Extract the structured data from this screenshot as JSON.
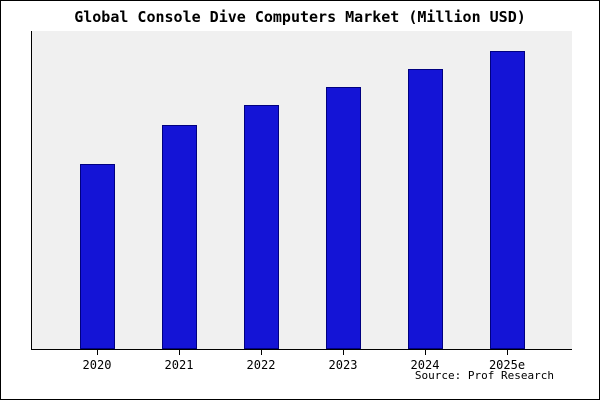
{
  "title": "Global Console Dive Computers Market (Million USD)",
  "source": "Source: Prof Research",
  "colors": {
    "bar_fill": "#1414d6",
    "bar_border": "#000080",
    "plot_bg": "#f0f0f0",
    "page_bg": "#ffffff",
    "axis": "#000000"
  },
  "chart_data": {
    "type": "bar",
    "title": "Global Console Dive Computers Market (Million USD)",
    "categories": [
      "2020",
      "2021",
      "2022",
      "2023",
      "2024",
      "2025e"
    ],
    "values": [
      62,
      75,
      82,
      88,
      94,
      100
    ],
    "xlabel": "",
    "ylabel": "",
    "ylim": [
      0,
      105
    ],
    "y_axis_tick_labels_visible": false,
    "grid": false,
    "legend": false,
    "annotations": [
      "Source: Prof Research"
    ]
  }
}
